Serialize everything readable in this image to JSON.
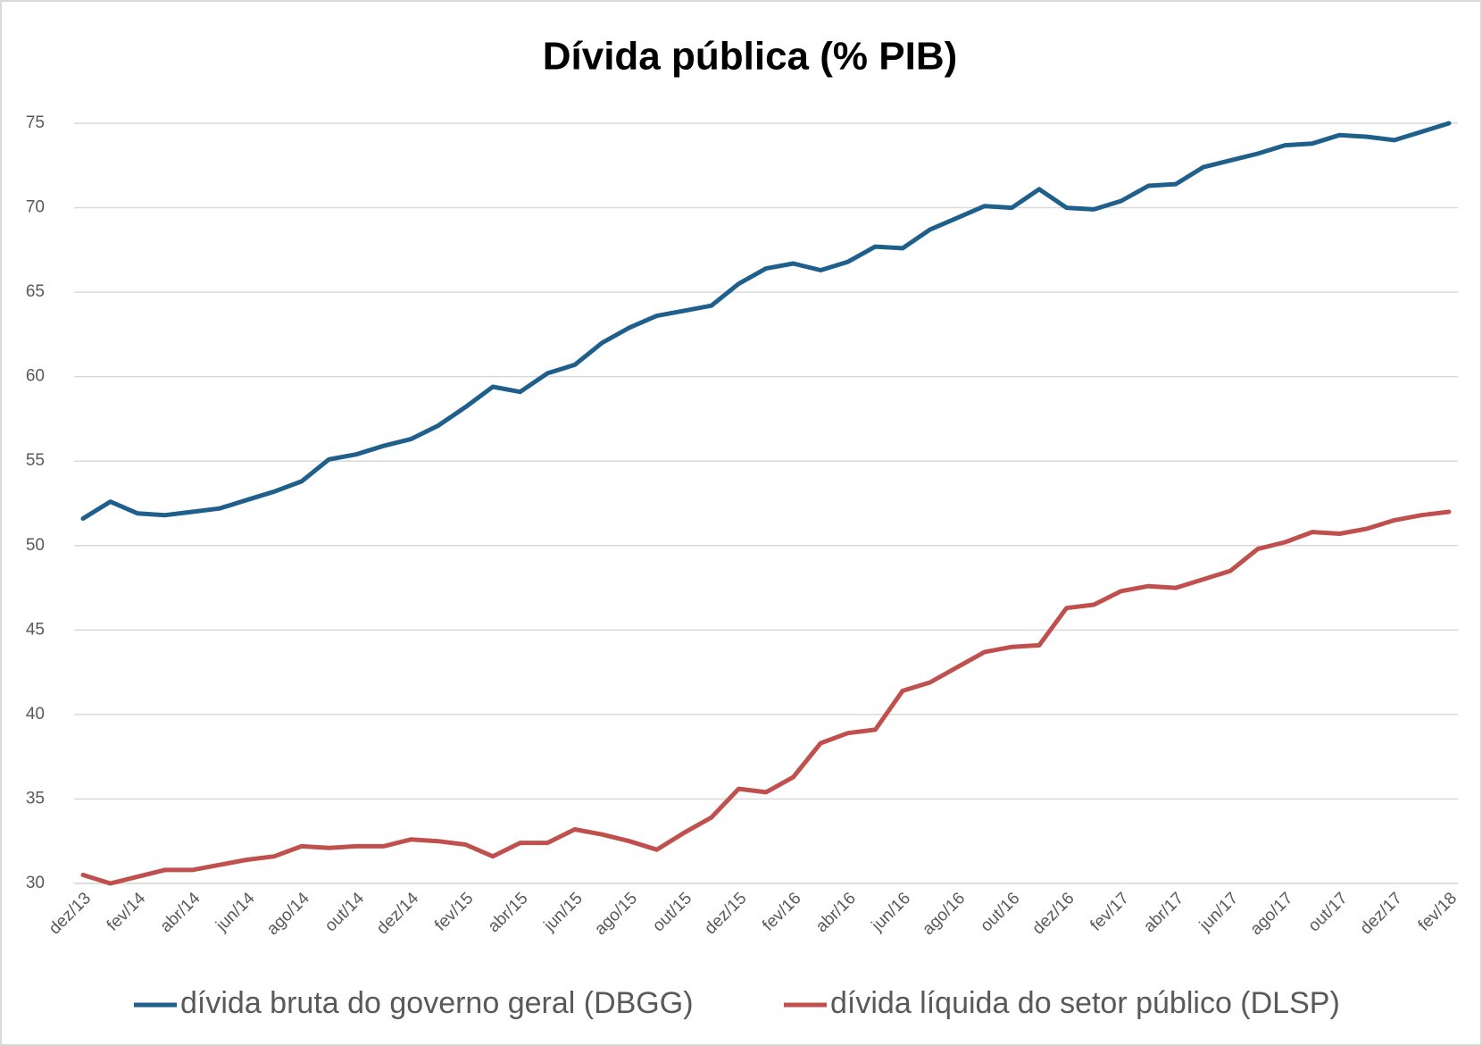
{
  "chart_data": {
    "type": "line",
    "title": "Dívida pública (% PIB)",
    "categories": [
      "dez/13",
      null,
      "fev/14",
      null,
      "abr/14",
      null,
      "jun/14",
      null,
      "ago/14",
      null,
      "out/14",
      null,
      "dez/14",
      null,
      "fev/15",
      null,
      "abr/15",
      null,
      "jun/15",
      null,
      "ago/15",
      null,
      "out/15",
      null,
      "dez/15",
      null,
      "fev/16",
      null,
      "abr/16",
      null,
      "jun/16",
      null,
      "ago/16",
      null,
      "out/16",
      null,
      "dez/16",
      null,
      "fev/17",
      null,
      "abr/17",
      null,
      "jun/17",
      null,
      "ago/17",
      null,
      "out/17",
      null,
      "dez/17",
      null,
      "fev/18"
    ],
    "series": [
      {
        "name": "dívida bruta do governo geral (DBGG)",
        "color": "#1f5f8b",
        "values": [
          51.6,
          52.6,
          51.9,
          51.8,
          52.0,
          52.2,
          52.7,
          53.2,
          53.8,
          55.1,
          55.4,
          55.9,
          56.3,
          57.1,
          58.2,
          59.4,
          59.1,
          60.2,
          60.7,
          62.0,
          62.9,
          63.6,
          63.9,
          64.2,
          65.5,
          66.4,
          66.7,
          66.3,
          66.8,
          67.7,
          67.6,
          68.7,
          69.4,
          70.1,
          70.0,
          71.1,
          70.0,
          69.9,
          70.4,
          71.3,
          71.4,
          72.4,
          72.8,
          73.2,
          73.7,
          73.8,
          74.3,
          74.2,
          74.0,
          74.5,
          75.0
        ]
      },
      {
        "name": "dívida líquida do setor público (DLSP)",
        "color": "#c0504d",
        "values": [
          30.5,
          30.0,
          30.4,
          30.8,
          30.8,
          31.1,
          31.4,
          31.6,
          32.2,
          32.1,
          32.2,
          32.2,
          32.6,
          32.5,
          32.3,
          31.6,
          32.4,
          32.4,
          33.2,
          32.9,
          32.5,
          32.0,
          33.0,
          33.9,
          35.6,
          35.4,
          36.3,
          38.3,
          38.9,
          39.1,
          41.4,
          41.9,
          42.8,
          43.7,
          44.0,
          44.1,
          46.3,
          46.5,
          47.3,
          47.6,
          47.5,
          48.0,
          48.5,
          49.8,
          50.2,
          50.8,
          50.7,
          51.0,
          51.5,
          51.8,
          52.0
        ]
      }
    ],
    "ylim": [
      30,
      75
    ],
    "yticks": [
      30,
      35,
      40,
      45,
      50,
      55,
      60,
      65,
      70,
      75
    ],
    "grid": true,
    "legend": "bottom"
  }
}
